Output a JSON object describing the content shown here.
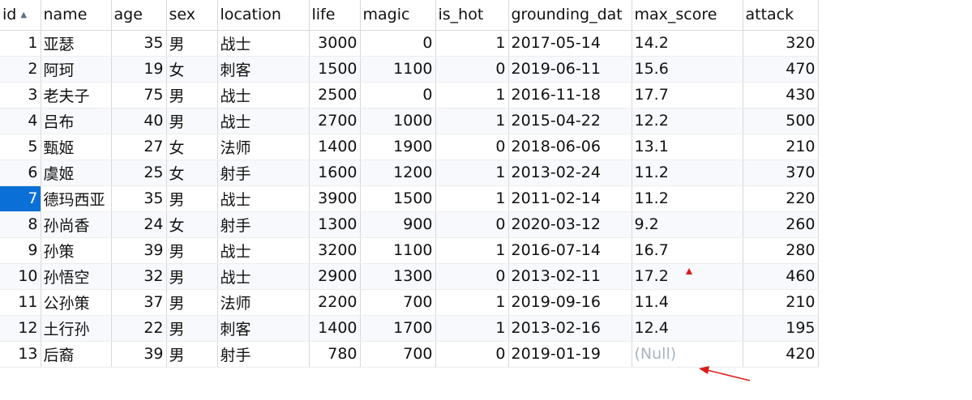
{
  "columns": [
    {
      "label": "id",
      "align": "num"
    },
    {
      "label": "name",
      "align": "txt"
    },
    {
      "label": "age",
      "align": "num"
    },
    {
      "label": "sex",
      "align": "txt"
    },
    {
      "label": "location",
      "align": "txt"
    },
    {
      "label": "life",
      "align": "num"
    },
    {
      "label": "magic",
      "align": "num"
    },
    {
      "label": "is_hot",
      "align": "num"
    },
    {
      "label": "grounding_dat",
      "align": "txt"
    },
    {
      "label": "max_score",
      "align": "txt"
    },
    {
      "label": "attack",
      "align": "num"
    }
  ],
  "sort": {
    "column": "id",
    "direction": "ascending",
    "icon": "sort-ascending-icon"
  },
  "selected_cell": {
    "row": 6,
    "column": "id"
  },
  "rows": [
    [
      "1",
      "亚瑟",
      "35",
      "男",
      "战士",
      "3000",
      "0",
      "1",
      "2017-05-14",
      "14.2",
      "320"
    ],
    [
      "2",
      "阿珂",
      "19",
      "女",
      "刺客",
      "1500",
      "1100",
      "0",
      "2019-06-11",
      "15.6",
      "470"
    ],
    [
      "3",
      "老夫子",
      "75",
      "男",
      "战士",
      "2500",
      "0",
      "1",
      "2016-11-18",
      "17.7",
      "430"
    ],
    [
      "4",
      "吕布",
      "40",
      "男",
      "战士",
      "2700",
      "1000",
      "1",
      "2015-04-22",
      "12.2",
      "500"
    ],
    [
      "5",
      "甄姬",
      "27",
      "女",
      "法师",
      "1400",
      "1900",
      "0",
      "2018-06-06",
      "13.1",
      "210"
    ],
    [
      "6",
      "虞姬",
      "25",
      "女",
      "射手",
      "1600",
      "1200",
      "1",
      "2013-02-24",
      "11.2",
      "370"
    ],
    [
      "7",
      "德玛西亚",
      "35",
      "男",
      "战士",
      "3900",
      "1500",
      "1",
      "2011-02-14",
      "11.2",
      "220"
    ],
    [
      "8",
      "孙尚香",
      "24",
      "女",
      "射手",
      "1300",
      "900",
      "0",
      "2020-03-12",
      "9.2",
      "260"
    ],
    [
      "9",
      "孙策",
      "39",
      "男",
      "战士",
      "3200",
      "1100",
      "1",
      "2016-07-14",
      "16.7",
      "280"
    ],
    [
      "10",
      "孙悟空",
      "32",
      "男",
      "战士",
      "2900",
      "1300",
      "0",
      "2013-02-11",
      "17.2",
      "460"
    ],
    [
      "11",
      "公孙策",
      "37",
      "男",
      "法师",
      "2200",
      "700",
      "1",
      "2019-09-16",
      "11.4",
      "210"
    ],
    [
      "12",
      "土行孙",
      "22",
      "男",
      "刺客",
      "1400",
      "1700",
      "1",
      "2013-02-16",
      "12.4",
      "195"
    ],
    [
      "13",
      "后裔",
      "39",
      "男",
      "射手",
      "780",
      "700",
      "0",
      "2019-01-19",
      "(Null)",
      "420"
    ]
  ],
  "annotations": {
    "color": "#e01818"
  }
}
